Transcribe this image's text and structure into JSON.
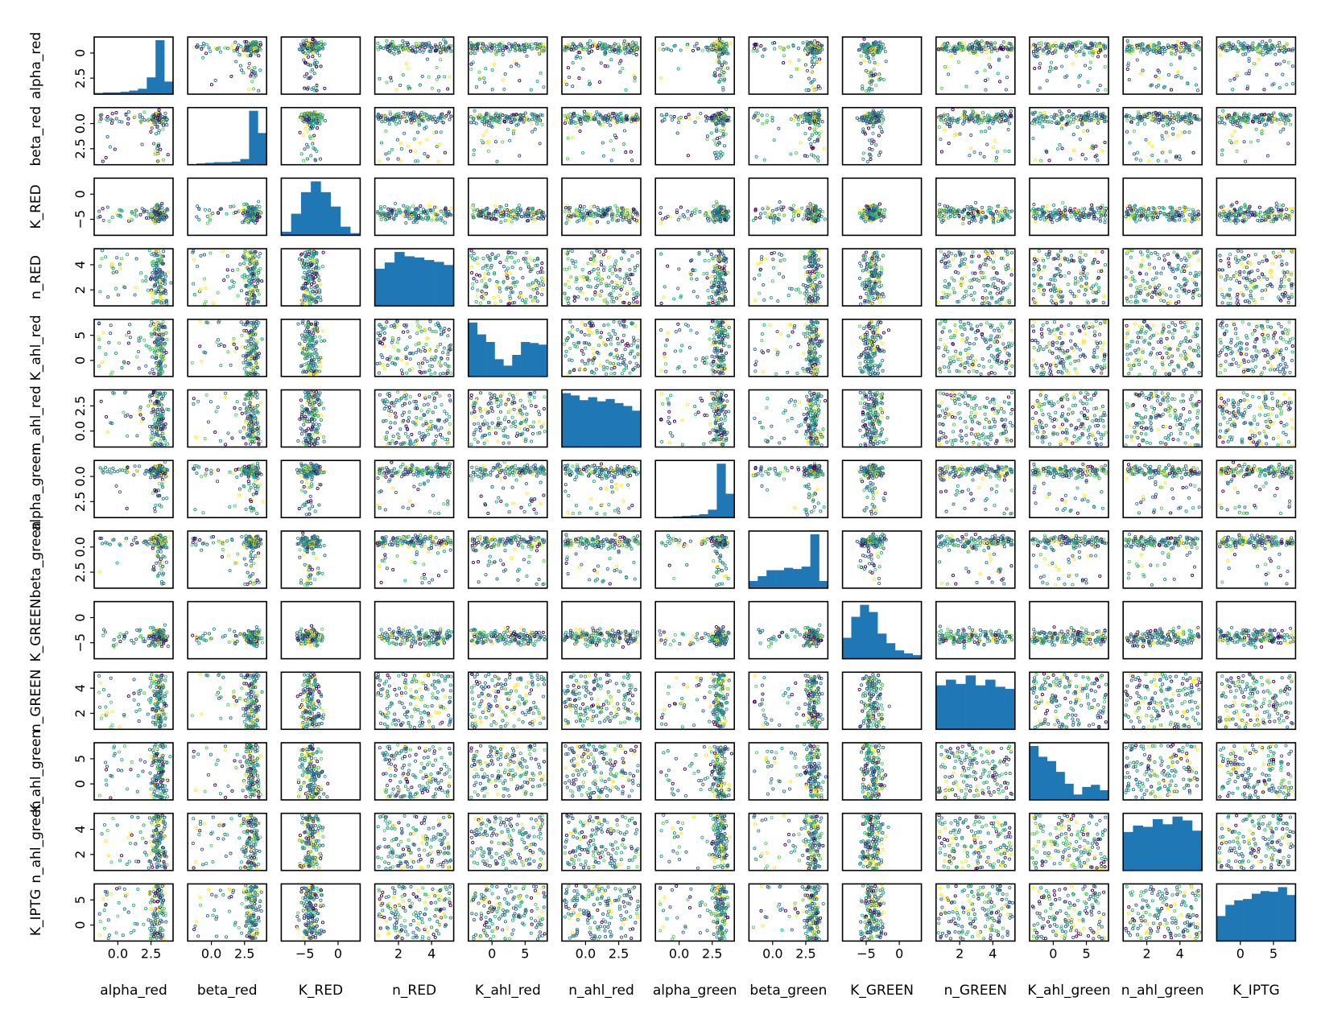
{
  "chart_data": {
    "type": "scatter",
    "layout": "pair-plot",
    "title": "",
    "variables": [
      "alpha_red",
      "beta_red",
      "K_RED",
      "n_RED",
      "K_ahl_red",
      "n_ahl_red",
      "alpha_green",
      "beta_green",
      "K_GREEN",
      "n_GREEN",
      "K_ahl_green",
      "n_ahl_green",
      "K_IPTG"
    ],
    "x_ticks": {
      "alpha_red": [
        "0.0",
        "2.5"
      ],
      "beta_red": [
        "0.0",
        "2.5"
      ],
      "K_RED": [
        "−5",
        "0"
      ],
      "n_RED": [
        "2",
        "4"
      ],
      "K_ahl_red": [
        "0",
        "5"
      ],
      "n_ahl_red": [
        "0.0",
        "2.5"
      ],
      "alpha_green": [
        "0.0",
        "2.5"
      ],
      "beta_green": [
        "0.0",
        "2.5"
      ],
      "K_GREEN": [
        "−5",
        "0"
      ],
      "n_GREEN": [
        "2",
        "4"
      ],
      "K_ahl_green": [
        "0",
        "5"
      ],
      "n_ahl_green": [
        "2",
        "4"
      ],
      "K_IPTG": [
        "0",
        "5"
      ]
    },
    "y_ticks": {
      "alpha_red": [
        "0",
        "2.5"
      ],
      "beta_red": [
        "0.0",
        "2.5"
      ],
      "K_RED": [
        "0",
        "−5"
      ],
      "n_RED": [
        "4",
        "2"
      ],
      "K_ahl_red": [
        "5",
        "0"
      ],
      "n_ahl_red": [
        "2.5",
        "0.0"
      ],
      "alpha_green": [
        "0.0",
        "2.5"
      ],
      "beta_green": [
        "0.0",
        "2.5"
      ],
      "K_GREEN": [
        "0",
        "−5"
      ],
      "n_GREEN": [
        "4",
        "2"
      ],
      "K_ahl_green": [
        "5",
        "0"
      ],
      "n_ahl_green": [
        "4",
        "2"
      ],
      "K_IPTG": [
        "5",
        "0"
      ]
    },
    "ranges": {
      "alpha_red": [
        -1.6,
        3.4
      ],
      "beta_red": [
        -1.6,
        3.4
      ],
      "K_RED": [
        -7.5,
        2.0
      ],
      "n_RED": [
        1.0,
        4.0
      ],
      "K_ahl_red": [
        -2.0,
        5.0
      ],
      "n_ahl_red": [
        0.0,
        4.2
      ],
      "alpha_green": [
        -2.0,
        3.4
      ],
      "beta_green": [
        -1.6,
        3.4
      ],
      "K_GREEN": [
        -7.0,
        2.0
      ],
      "n_GREEN": [
        1.0,
        4.0
      ],
      "K_ahl_green": [
        -2.0,
        5.0
      ],
      "n_ahl_green": [
        1.0,
        4.0
      ],
      "K_IPTG": [
        -2.0,
        5.0
      ]
    },
    "diagonal_histograms": {
      "alpha_red": [
        2,
        3,
        3,
        4,
        6,
        9,
        28,
        90,
        21
      ],
      "beta_red": [
        1,
        2,
        3,
        4,
        4,
        5,
        9,
        85,
        50
      ],
      "K_RED": [
        5,
        30,
        60,
        75,
        60,
        40,
        12,
        3
      ],
      "n_RED": [
        60,
        70,
        87,
        80,
        78,
        74,
        71,
        66
      ],
      "K_ahl_red": [
        100,
        78,
        64,
        32,
        20,
        40,
        64,
        62,
        59
      ],
      "n_ahl_red": [
        92,
        88,
        80,
        85,
        78,
        82,
        75,
        70,
        62
      ],
      "alpha_green": [
        1,
        1,
        2,
        3,
        4,
        6,
        14,
        95,
        42
      ],
      "beta_green": [
        12,
        20,
        30,
        30,
        34,
        32,
        36,
        90,
        12
      ],
      "K_GREEN": [
        35,
        70,
        90,
        78,
        42,
        26,
        14,
        9,
        6
      ],
      "n_GREEN": [
        62,
        70,
        64,
        76,
        62,
        70,
        60,
        57
      ],
      "K_ahl_green": [
        100,
        80,
        72,
        52,
        30,
        10,
        24,
        28,
        18
      ],
      "n_ahl_green": [
        60,
        70,
        68,
        80,
        72,
        84,
        78,
        62
      ],
      "K_IPTG": [
        38,
        55,
        62,
        64,
        72,
        76,
        75,
        82,
        70
      ]
    },
    "colormap": "viridis",
    "histogram_color": "#1f77b4",
    "grid": false,
    "legend": "none"
  }
}
